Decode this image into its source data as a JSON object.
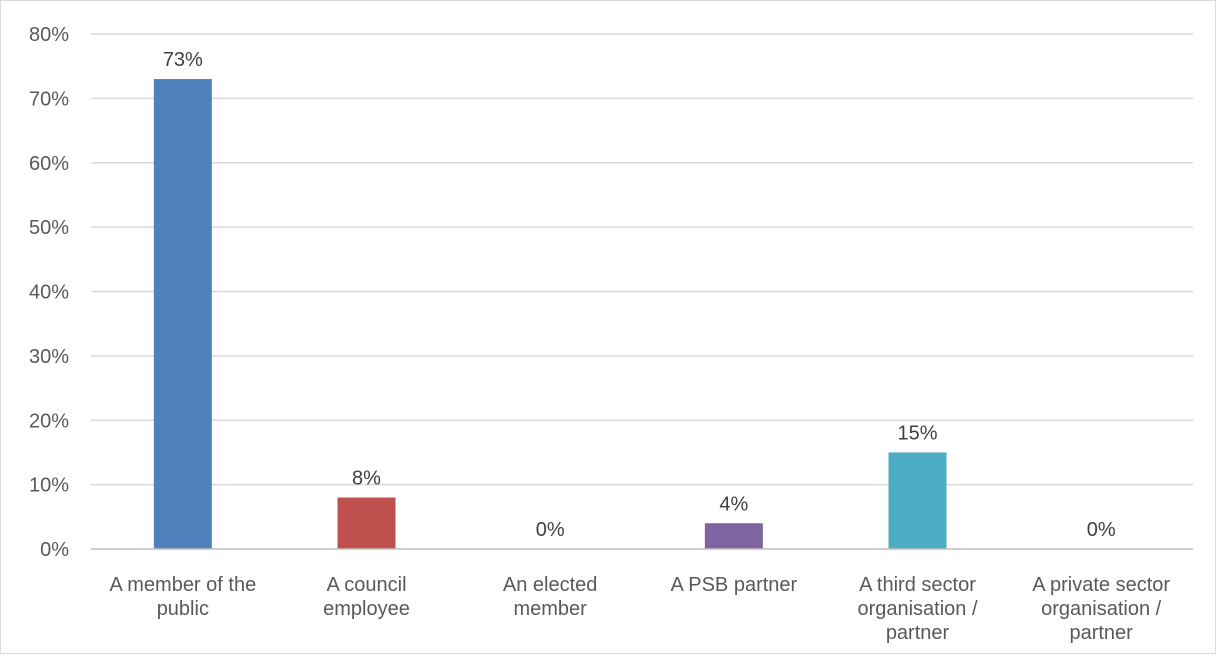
{
  "chart_data": {
    "type": "bar",
    "title": "",
    "xlabel": "",
    "ylabel": "",
    "categories": [
      "A member of the public",
      "A council employee",
      "An elected member",
      "A PSB partner",
      "A third sector organisation / partner",
      "A private sector organisation / partner"
    ],
    "category_label_lines": [
      [
        "A member of the",
        "public"
      ],
      [
        "A council",
        "employee"
      ],
      [
        "An elected",
        "member"
      ],
      [
        "A PSB partner"
      ],
      [
        "A third sector",
        "organisation /",
        "partner"
      ],
      [
        "A private sector",
        "organisation /",
        "partner"
      ]
    ],
    "values": [
      73,
      8,
      0,
      4,
      15,
      0
    ],
    "data_labels": [
      "73%",
      "8%",
      "0%",
      "4%",
      "15%",
      "0%"
    ],
    "colors": [
      "#4f81bd",
      "#c0504d",
      "#9bbb59",
      "#8064a2",
      "#4bacc6",
      "#f79646"
    ],
    "ylim": [
      0,
      80
    ],
    "yticks": [
      0,
      10,
      20,
      30,
      40,
      50,
      60,
      70,
      80
    ],
    "ytick_labels": [
      "0%",
      "10%",
      "20%",
      "30%",
      "40%",
      "50%",
      "60%",
      "70%",
      "80%"
    ],
    "grid": true,
    "legend": "none"
  }
}
